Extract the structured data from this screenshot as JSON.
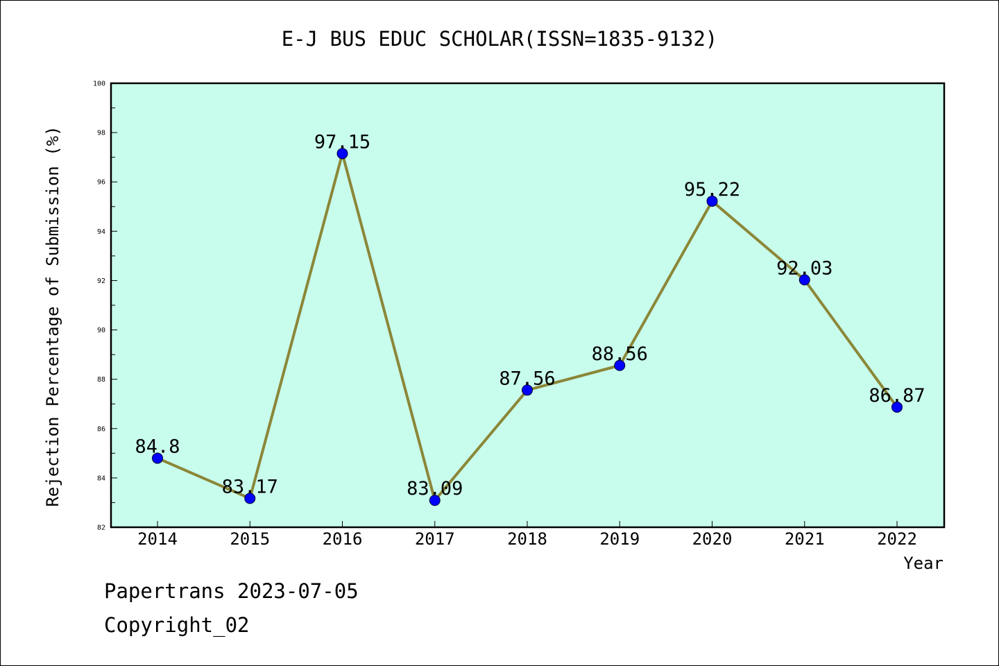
{
  "chart_data": {
    "type": "line",
    "title": "E-J BUS EDUC SCHOLAR(ISSN=1835-9132)",
    "xlabel": "Year",
    "ylabel": "Rejection Percentage of Submission (%)",
    "categories": [
      "2014",
      "2015",
      "2016",
      "2017",
      "2018",
      "2019",
      "2020",
      "2021",
      "2022"
    ],
    "series": [
      {
        "values": [
          84.8,
          83.17,
          97.15,
          83.09,
          87.56,
          88.56,
          95.22,
          92.03,
          86.87
        ]
      }
    ],
    "data_labels": [
      "84.8",
      "83.17",
      "97.15",
      "83.09",
      "87.56",
      "88.56",
      "95.22",
      "92.03",
      "86.87"
    ],
    "ylim": [
      82,
      100
    ],
    "y_ticks": [
      "82",
      "84",
      "86",
      "88",
      "90",
      "92",
      "94",
      "96",
      "98",
      "100"
    ],
    "grid": false,
    "legend": "none",
    "colors": {
      "plot_background": "#c8fcec",
      "line": "#8b8738",
      "marker": "#0000ff",
      "axes": "#000000"
    }
  },
  "footer": {
    "line1": "Papertrans 2023-07-05",
    "line2": "Copyright_02"
  }
}
